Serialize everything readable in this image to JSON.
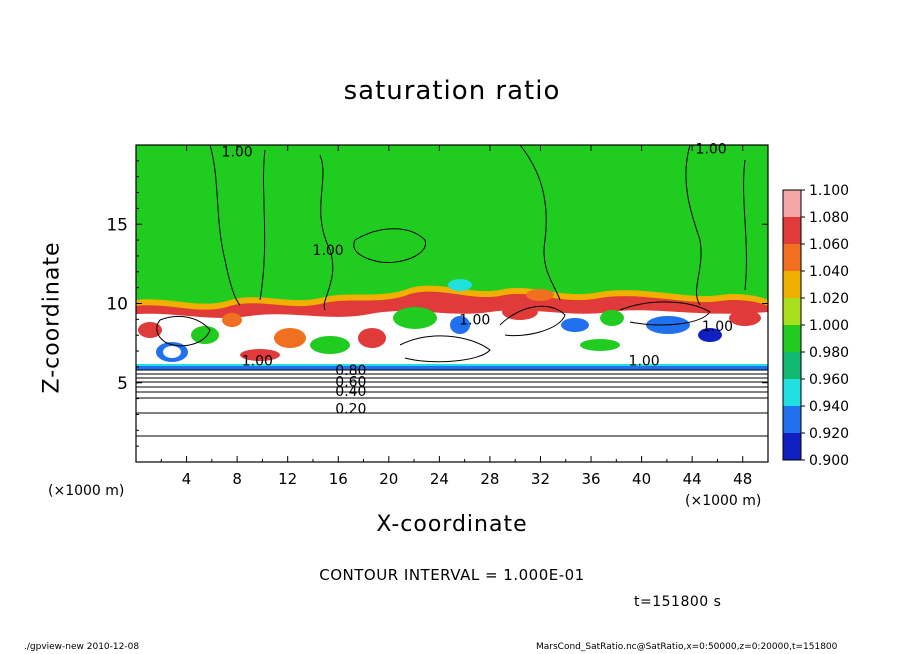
{
  "chart_data": {
    "type": "heatmap",
    "title": "saturation ratio",
    "xlabel": "X-coordinate",
    "ylabel": "Z-coordinate",
    "x_unit": "(×1000 m)",
    "y_unit": "(×1000 m)",
    "x_ticks": [
      "4",
      "8",
      "12",
      "16",
      "20",
      "24",
      "28",
      "32",
      "36",
      "40",
      "44",
      "48"
    ],
    "y_ticks": [
      "5",
      "10",
      "15"
    ],
    "xlim": [
      0,
      50
    ],
    "ylim": [
      0,
      20
    ],
    "colorbar": {
      "labels": [
        "1.100",
        "1.080",
        "1.060",
        "1.040",
        "1.020",
        "1.000",
        "0.980",
        "0.960",
        "0.940",
        "0.920",
        "0.900"
      ],
      "colors": [
        "#f4a6a6",
        "#e03a3a",
        "#f07020",
        "#f0b000",
        "#a8e020",
        "#20cc20",
        "#10b870",
        "#20e0e0",
        "#2070f0",
        "#1020c0",
        "#6000a0"
      ]
    },
    "contour_labels": [
      {
        "text": "1.00",
        "x": 8.0,
        "z": 19.4
      },
      {
        "text": "1.00",
        "x": 45.5,
        "z": 19.6
      },
      {
        "text": "1.00",
        "x": 15.2,
        "z": 13.2
      },
      {
        "text": "1.00",
        "x": 26.8,
        "z": 8.8
      },
      {
        "text": "1.00",
        "x": 9.6,
        "z": 6.2
      },
      {
        "text": "1.00",
        "x": 40.2,
        "z": 6.2
      },
      {
        "text": "1.00",
        "x": 46.0,
        "z": 8.4
      },
      {
        "text": "0.80",
        "x": 17.0,
        "z": 5.6
      },
      {
        "text": "0.60",
        "x": 17.0,
        "z": 4.9
      },
      {
        "text": "0.40",
        "x": 17.0,
        "z": 4.3
      },
      {
        "text": "0.20",
        "x": 17.0,
        "z": 3.2
      }
    ],
    "contour_interval_text": "CONTOUR INTERVAL = 1.000E-01",
    "time_text": "t=151800 s"
  },
  "footer_left": "./gpview-new   2010-12-08",
  "footer_right": "MarsCond_SatRatio.nc@SatRatio,x=0:50000,z=0:20000,t=151800"
}
